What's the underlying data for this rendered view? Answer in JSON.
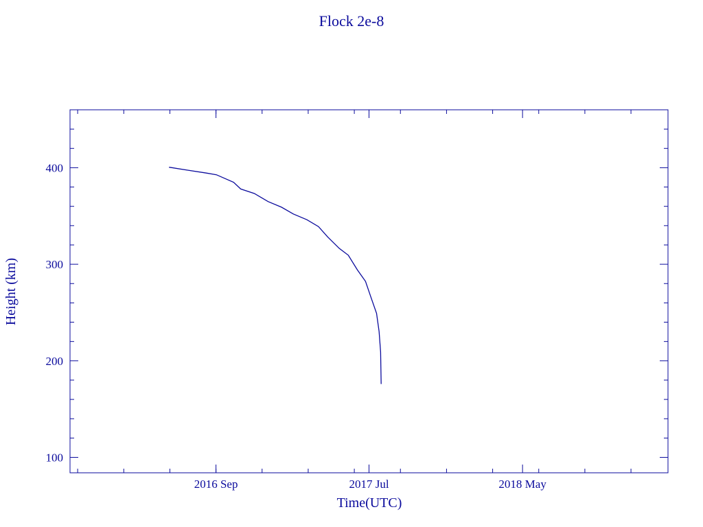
{
  "chart_data": {
    "type": "line",
    "title": "Flock 2e-8",
    "xlabel": "Time(UTC)",
    "ylabel": "Height (km)",
    "xlim": [
      "2015-11-17",
      "2019-02-13"
    ],
    "ylim": [
      84,
      460
    ],
    "x_ticks": [
      {
        "date": "2016-09-01",
        "label": "2016 Sep"
      },
      {
        "date": "2017-07-01",
        "label": "2017 Jul"
      },
      {
        "date": "2018-05-01",
        "label": "2018 May"
      }
    ],
    "y_ticks": [
      100,
      200,
      300,
      400
    ],
    "y_minor_step": 20,
    "grid": false,
    "color": "#0a0a9c",
    "series": [
      {
        "x": [
          "2016-05-31",
          "2016-07-08",
          "2016-08-13",
          "2016-09-02",
          "2016-10-06",
          "2016-10-20",
          "2016-11-16",
          "2016-12-13",
          "2017-01-09",
          "2017-02-01",
          "2017-02-28",
          "2017-03-23",
          "2017-04-10",
          "2017-05-03",
          "2017-05-21",
          "2017-06-08",
          "2017-06-24",
          "2017-07-05",
          "2017-07-16",
          "2017-07-21",
          "2017-07-24",
          "2017-07-25"
        ],
        "y": [
          400.5,
          397.4,
          394.5,
          392.7,
          384.9,
          378.0,
          373.3,
          365.0,
          359.1,
          352.1,
          346.1,
          339.0,
          328.4,
          316.5,
          309.4,
          294.1,
          282.3,
          265.7,
          249.2,
          230.3,
          209.1,
          176.0
        ]
      }
    ]
  }
}
